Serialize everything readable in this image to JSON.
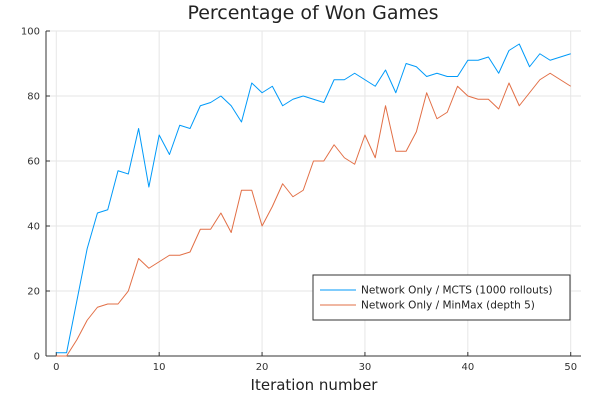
{
  "chart_data": {
    "type": "line",
    "title": "Percentage of Won Games",
    "xlabel": "Iteration number",
    "ylabel": "",
    "xlim": [
      -1,
      51
    ],
    "ylim": [
      0,
      100
    ],
    "xticks": [
      0,
      10,
      20,
      30,
      40,
      50
    ],
    "yticks": [
      0,
      20,
      40,
      60,
      80,
      100
    ],
    "grid": true,
    "legend": "bottom-right",
    "x": [
      0,
      1,
      2,
      3,
      4,
      5,
      6,
      7,
      8,
      9,
      10,
      11,
      12,
      13,
      14,
      15,
      16,
      17,
      18,
      19,
      20,
      21,
      22,
      23,
      24,
      25,
      26,
      27,
      28,
      29,
      30,
      31,
      32,
      33,
      34,
      35,
      36,
      37,
      38,
      39,
      40,
      41,
      42,
      43,
      44,
      45,
      46,
      47,
      48,
      49,
      50
    ],
    "series": [
      {
        "name": "Network Only / MCTS (1000 rollouts)",
        "color": "#009af9",
        "values": [
          1,
          1,
          17,
          33,
          44,
          45,
          57,
          56,
          70,
          52,
          68,
          62,
          71,
          70,
          77,
          78,
          80,
          77,
          72,
          84,
          81,
          83,
          77,
          79,
          80,
          79,
          78,
          85,
          85,
          87,
          85,
          83,
          88,
          81,
          90,
          89,
          86,
          87,
          86,
          86,
          91,
          91,
          92,
          87,
          94,
          96,
          89,
          93,
          91,
          92,
          93
        ]
      },
      {
        "name": "Network Only / MinMax (depth 5)",
        "color": "#e26f46",
        "values": [
          0,
          0,
          5,
          11,
          15,
          16,
          16,
          20,
          30,
          27,
          29,
          31,
          31,
          32,
          39,
          39,
          44,
          38,
          51,
          51,
          40,
          46,
          53,
          49,
          51,
          60,
          60,
          65,
          61,
          59,
          68,
          61,
          77,
          63,
          63,
          69,
          81,
          73,
          75,
          83,
          80,
          79,
          79,
          76,
          84,
          77,
          81,
          85,
          87,
          85,
          83
        ]
      }
    ]
  }
}
